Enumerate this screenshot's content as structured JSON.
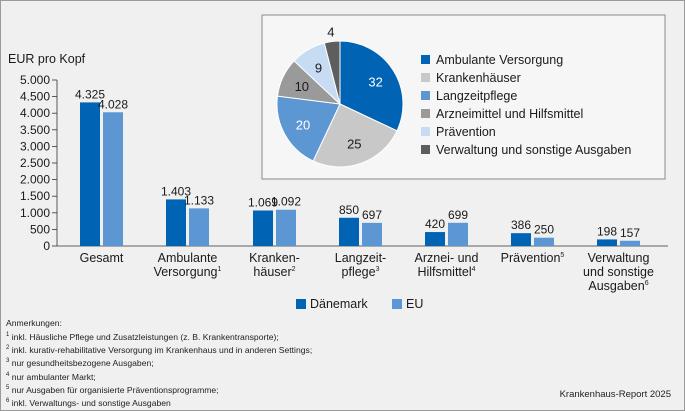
{
  "chart_data": [
    {
      "type": "bar",
      "ylabel": "EUR pro Kopf",
      "ylim": [
        0,
        5000
      ],
      "yticks": [
        0,
        500,
        1000,
        1500,
        2000,
        2500,
        3000,
        3500,
        4000,
        4500,
        5000
      ],
      "ytick_labels": [
        "0",
        "500",
        "1.000",
        "1.500",
        "2.000",
        "2.500",
        "3.000",
        "3.500",
        "4.000",
        "4.500",
        "5.000"
      ],
      "categories": [
        {
          "lines": [
            "Gesamt"
          ],
          "sup": ""
        },
        {
          "lines": [
            "Ambulante",
            "Versorgung"
          ],
          "sup": "1"
        },
        {
          "lines": [
            "Kranken-",
            "häuser"
          ],
          "sup": "2"
        },
        {
          "lines": [
            "Langzeit-",
            "pflege"
          ],
          "sup": "3"
        },
        {
          "lines": [
            "Arznei- und",
            "Hilfsmittel"
          ],
          "sup": "4"
        },
        {
          "lines": [
            "Prävention"
          ],
          "sup": "5"
        },
        {
          "lines": [
            "Verwaltung",
            "und sonstige",
            "Ausgaben"
          ],
          "sup": "6"
        }
      ],
      "series": [
        {
          "name": "Dänemark",
          "color": "#0063b4",
          "values": [
            4325,
            1403,
            1069,
            850,
            420,
            386,
            198
          ],
          "labels": [
            "4.325",
            "1.403",
            "1.069",
            "850",
            "420",
            "386",
            "198"
          ]
        },
        {
          "name": "EU",
          "color": "#5c97d4",
          "values": [
            4028,
            1133,
            1092,
            697,
            699,
            250,
            157
          ],
          "labels": [
            "4.028",
            "1.133",
            "1.092",
            "697",
            "699",
            "250",
            "157"
          ]
        }
      ],
      "legend": "bottom-center"
    },
    {
      "type": "pie",
      "slices": [
        {
          "label": "Ambulante Versorgung",
          "value": 32,
          "color": "#0063b4"
        },
        {
          "label": "Krankenhäuser",
          "value": 25,
          "color": "#c8c8c8"
        },
        {
          "label": "Langzeitpflege",
          "value": 20,
          "color": "#5c97d4"
        },
        {
          "label": "Arzneimittel und Hilfsmittel",
          "value": 10,
          "color": "#9a9a9a"
        },
        {
          "label": "Prävention",
          "value": 9,
          "color": "#c7dbf2"
        },
        {
          "label": "Verwaltung und sonstige Ausgaben",
          "value": 4,
          "color": "#5e5e5e"
        }
      ],
      "legend": "right"
    }
  ],
  "notes": {
    "heading": "Anmerkungen:",
    "items": [
      {
        "sup": "1",
        "text": "inkl. Häusliche Pflege und Zusatzleistungen (z. B. Krankentransporte);"
      },
      {
        "sup": "2",
        "text": "inkl. kurativ-rehabilitative Versorgung im Krankenhaus und in anderen Settings;"
      },
      {
        "sup": "3",
        "text": "nur gesundheitsbezogene Ausgaben;"
      },
      {
        "sup": "4",
        "text": "nur ambulanter Markt;"
      },
      {
        "sup": "5",
        "text": "nur Ausgaben für organisierte Präventionsprogramme;"
      },
      {
        "sup": "6",
        "text": "inkl. Verwaltungs- und sonstige Ausgaben"
      }
    ]
  },
  "source": "Krankenhaus-Report 2025"
}
